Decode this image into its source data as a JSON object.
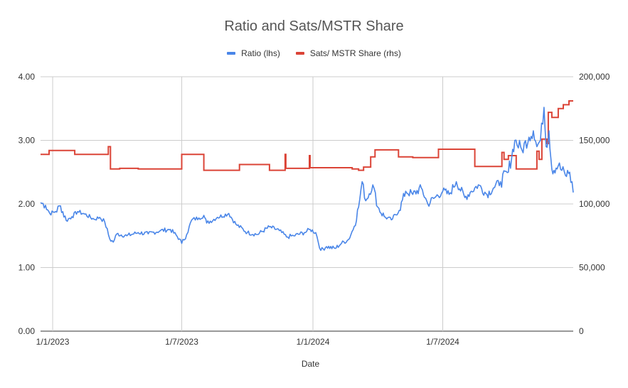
{
  "chart_data": {
    "type": "line",
    "title": "Ratio and Sats/MSTR Share",
    "xlabel": "Date",
    "ylabel_left": "",
    "ylabel_right": "",
    "x_range": [
      "2022-12-15",
      "2024-12-31"
    ],
    "ylim_left": [
      0,
      4
    ],
    "ylim_right": [
      0,
      200000
    ],
    "left_ticks": [
      "0.00",
      "1.00",
      "2.00",
      "3.00",
      "4.00"
    ],
    "right_ticks": [
      "0",
      "50,000",
      "100,000",
      "150,000",
      "200,000"
    ],
    "x_ticks": [
      {
        "date": "2023-01-01",
        "label": "1/1/2023"
      },
      {
        "date": "2023-07-01",
        "label": "1/7/2023"
      },
      {
        "date": "2024-01-01",
        "label": "1/1/2024"
      },
      {
        "date": "2024-07-01",
        "label": "1/7/2024"
      }
    ],
    "grid": true,
    "legend_position": "top",
    "series": [
      {
        "name": "Ratio (lhs)",
        "axis": "left",
        "color": "#4a86e8",
        "points": [
          [
            "2022-12-15",
            2.02
          ],
          [
            "2022-12-22",
            1.98
          ],
          [
            "2022-12-28",
            1.85
          ],
          [
            "2023-01-05",
            1.88
          ],
          [
            "2023-01-12",
            1.97
          ],
          [
            "2023-01-20",
            1.74
          ],
          [
            "2023-01-28",
            1.8
          ],
          [
            "2023-02-05",
            1.88
          ],
          [
            "2023-02-15",
            1.84
          ],
          [
            "2023-02-28",
            1.76
          ],
          [
            "2023-03-08",
            1.79
          ],
          [
            "2023-03-15",
            1.72
          ],
          [
            "2023-03-22",
            1.45
          ],
          [
            "2023-03-27",
            1.4
          ],
          [
            "2023-04-01",
            1.53
          ],
          [
            "2023-04-15",
            1.5
          ],
          [
            "2023-05-01",
            1.55
          ],
          [
            "2023-05-15",
            1.53
          ],
          [
            "2023-06-01",
            1.58
          ],
          [
            "2023-06-15",
            1.6
          ],
          [
            "2023-06-28",
            1.45
          ],
          [
            "2023-07-01",
            1.38
          ],
          [
            "2023-07-08",
            1.52
          ],
          [
            "2023-07-15",
            1.75
          ],
          [
            "2023-07-25",
            1.78
          ],
          [
            "2023-08-01",
            1.82
          ],
          [
            "2023-08-05",
            1.7
          ],
          [
            "2023-08-20",
            1.79
          ],
          [
            "2023-09-05",
            1.85
          ],
          [
            "2023-09-15",
            1.68
          ],
          [
            "2023-10-01",
            1.55
          ],
          [
            "2023-10-15",
            1.52
          ],
          [
            "2023-11-01",
            1.64
          ],
          [
            "2023-11-15",
            1.58
          ],
          [
            "2023-11-25",
            1.48
          ],
          [
            "2023-12-05",
            1.5
          ],
          [
            "2023-12-20",
            1.55
          ],
          [
            "2023-12-28",
            1.6
          ],
          [
            "2024-01-05",
            1.55
          ],
          [
            "2024-01-12",
            1.27
          ],
          [
            "2024-01-20",
            1.33
          ],
          [
            "2024-02-01",
            1.3
          ],
          [
            "2024-02-10",
            1.38
          ],
          [
            "2024-02-20",
            1.44
          ],
          [
            "2024-02-28",
            1.65
          ],
          [
            "2024-03-05",
            1.95
          ],
          [
            "2024-03-10",
            2.35
          ],
          [
            "2024-03-15",
            2.05
          ],
          [
            "2024-03-25",
            2.3
          ],
          [
            "2024-04-01",
            1.95
          ],
          [
            "2024-04-10",
            1.8
          ],
          [
            "2024-04-20",
            1.75
          ],
          [
            "2024-05-01",
            1.9
          ],
          [
            "2024-05-10",
            2.2
          ],
          [
            "2024-05-20",
            2.15
          ],
          [
            "2024-06-01",
            2.25
          ],
          [
            "2024-06-10",
            2.0
          ],
          [
            "2024-06-20",
            2.1
          ],
          [
            "2024-07-01",
            2.2
          ],
          [
            "2024-07-10",
            2.15
          ],
          [
            "2024-07-20",
            2.35
          ],
          [
            "2024-08-01",
            2.1
          ],
          [
            "2024-08-10",
            2.2
          ],
          [
            "2024-08-20",
            2.3
          ],
          [
            "2024-09-01",
            2.15
          ],
          [
            "2024-09-10",
            2.25
          ],
          [
            "2024-09-20",
            2.35
          ],
          [
            "2024-10-01",
            2.5
          ],
          [
            "2024-10-10",
            3.0
          ],
          [
            "2024-10-20",
            2.85
          ],
          [
            "2024-10-30",
            3.05
          ],
          [
            "2024-11-05",
            3.15
          ],
          [
            "2024-11-10",
            2.9
          ],
          [
            "2024-11-15",
            3.0
          ],
          [
            "2024-11-20",
            3.52
          ],
          [
            "2024-11-23",
            2.9
          ],
          [
            "2024-11-27",
            3.15
          ],
          [
            "2024-12-01",
            2.55
          ],
          [
            "2024-12-10",
            2.6
          ],
          [
            "2024-12-20",
            2.45
          ],
          [
            "2024-12-26",
            2.5
          ],
          [
            "2024-12-31",
            2.18
          ]
        ]
      },
      {
        "name": "Sats/ MSTR Share (rhs)",
        "axis": "right",
        "color": "#db4437",
        "steps": [
          [
            "2022-12-15",
            139000
          ],
          [
            "2022-12-27",
            142000
          ],
          [
            "2023-02-01",
            139000
          ],
          [
            "2023-03-20",
            145000
          ],
          [
            "2023-03-23",
            127500
          ],
          [
            "2023-04-05",
            128000
          ],
          [
            "2023-05-01",
            127500
          ],
          [
            "2023-07-01",
            139000
          ],
          [
            "2023-08-01",
            126500
          ],
          [
            "2023-09-20",
            131000
          ],
          [
            "2023-11-01",
            126500
          ],
          [
            "2023-11-23",
            139000
          ],
          [
            "2023-11-24",
            128000
          ],
          [
            "2023-12-27",
            138000
          ],
          [
            "2023-12-28",
            128500
          ],
          [
            "2024-02-25",
            127500
          ],
          [
            "2024-03-05",
            126500
          ],
          [
            "2024-03-12",
            129000
          ],
          [
            "2024-03-22",
            137000
          ],
          [
            "2024-03-28",
            142500
          ],
          [
            "2024-04-30",
            137000
          ],
          [
            "2024-05-20",
            136500
          ],
          [
            "2024-06-25",
            143000
          ],
          [
            "2024-08-15",
            129500
          ],
          [
            "2024-09-22",
            140500
          ],
          [
            "2024-09-25",
            135000
          ],
          [
            "2024-10-01",
            138000
          ],
          [
            "2024-10-12",
            127500
          ],
          [
            "2024-11-10",
            141500
          ],
          [
            "2024-11-13",
            135000
          ],
          [
            "2024-11-17",
            151000
          ],
          [
            "2024-11-24",
            147500
          ],
          [
            "2024-11-26",
            172000
          ],
          [
            "2024-12-01",
            168000
          ],
          [
            "2024-12-10",
            175000
          ],
          [
            "2024-12-17",
            178000
          ],
          [
            "2024-12-25",
            181000
          ],
          [
            "2024-12-31",
            181000
          ]
        ]
      }
    ]
  }
}
